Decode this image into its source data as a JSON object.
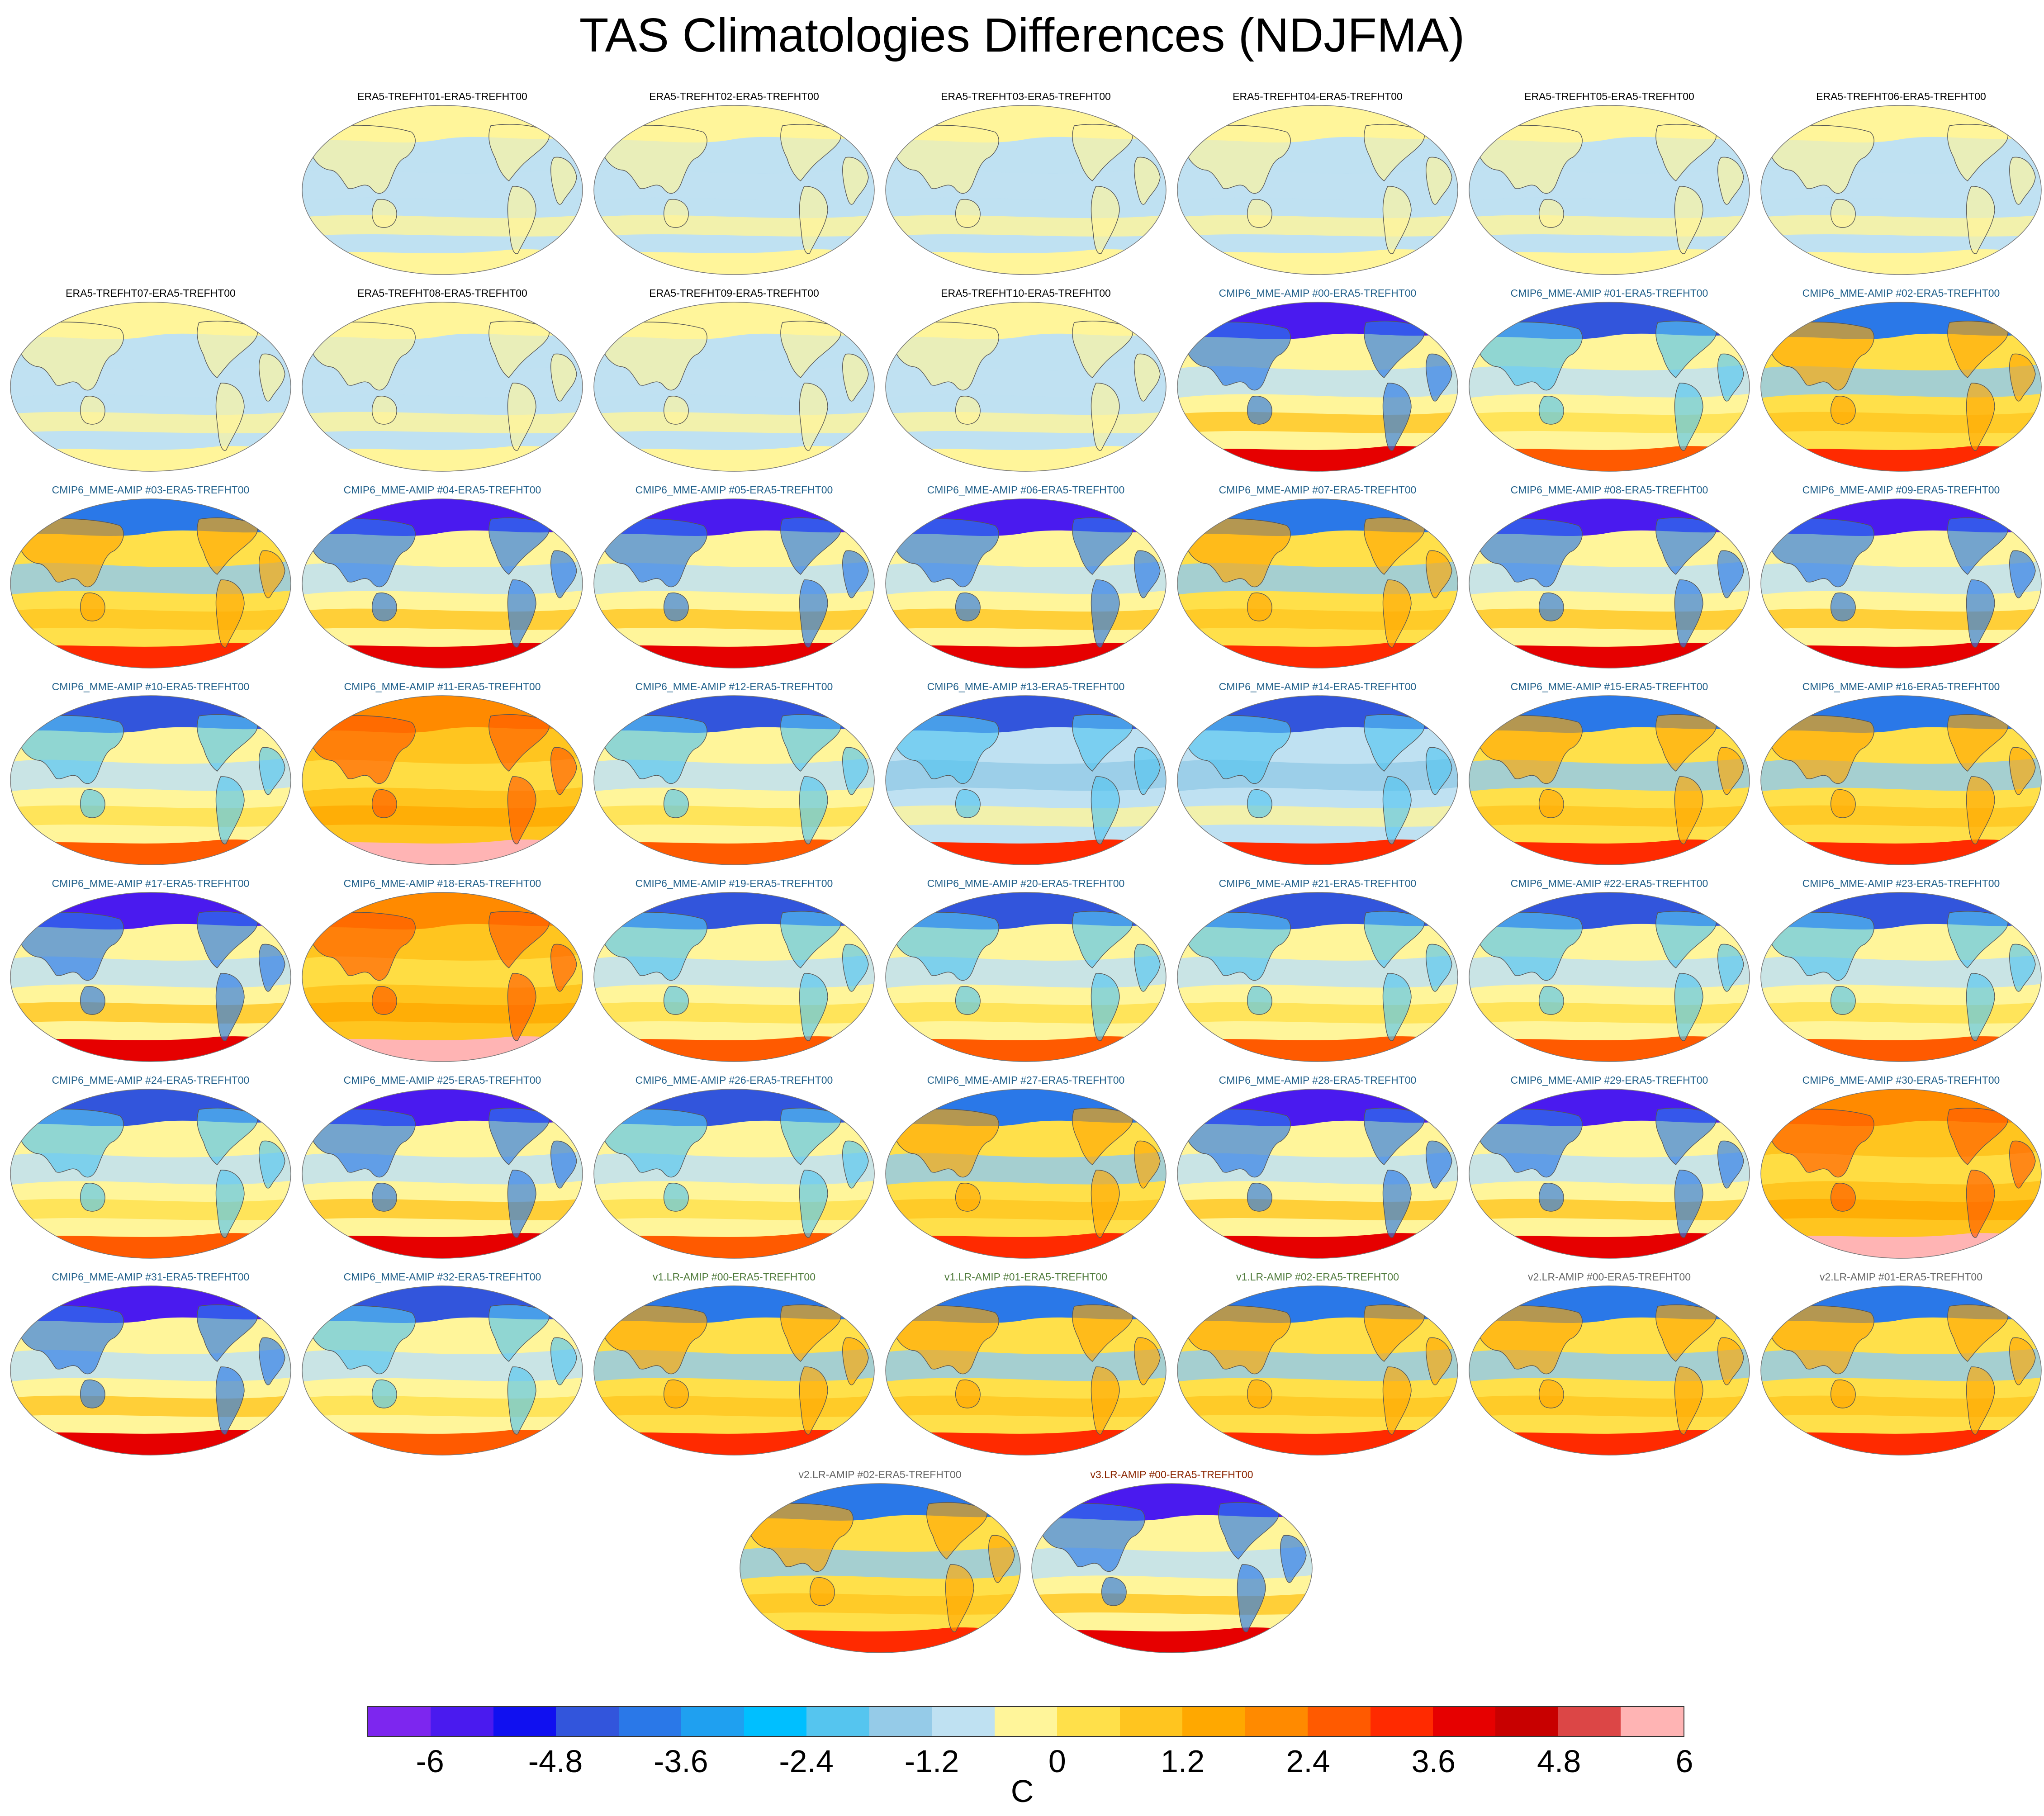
{
  "title": "TAS Climatologies Differences (NDJFMA)",
  "title_colors": {
    "era5": "#000000",
    "cmip6": "#1f5f8a",
    "v1": "#4e7a3a",
    "v2": "#666666",
    "v3": "#8b2500"
  },
  "panels": [
    {
      "label": "ERA5-TREFHT01-ERA5-TREFHT00",
      "group": "era5",
      "style": "era5"
    },
    {
      "label": "ERA5-TREFHT02-ERA5-TREFHT00",
      "group": "era5",
      "style": "era5"
    },
    {
      "label": "ERA5-TREFHT03-ERA5-TREFHT00",
      "group": "era5",
      "style": "era5"
    },
    {
      "label": "ERA5-TREFHT04-ERA5-TREFHT00",
      "group": "era5",
      "style": "era5"
    },
    {
      "label": "ERA5-TREFHT05-ERA5-TREFHT00",
      "group": "era5",
      "style": "era5"
    },
    {
      "label": "ERA5-TREFHT06-ERA5-TREFHT00",
      "group": "era5",
      "style": "era5"
    },
    {
      "label": "ERA5-TREFHT07-ERA5-TREFHT00",
      "group": "era5",
      "style": "era5"
    },
    {
      "label": "ERA5-TREFHT08-ERA5-TREFHT00",
      "group": "era5",
      "style": "era5"
    },
    {
      "label": "ERA5-TREFHT09-ERA5-TREFHT00",
      "group": "era5",
      "style": "era5"
    },
    {
      "label": "ERA5-TREFHT10-ERA5-TREFHT00",
      "group": "era5",
      "style": "era5"
    },
    {
      "label": "CMIP6_MME-AMIP  #00-ERA5-TREFHT00",
      "group": "cmip6",
      "style": "cold"
    },
    {
      "label": "CMIP6_MME-AMIP  #01-ERA5-TREFHT00",
      "group": "cmip6",
      "style": "mixed"
    },
    {
      "label": "CMIP6_MME-AMIP  #02-ERA5-TREFHT00",
      "group": "cmip6",
      "style": "warm"
    },
    {
      "label": "CMIP6_MME-AMIP  #03-ERA5-TREFHT00",
      "group": "cmip6",
      "style": "warm"
    },
    {
      "label": "CMIP6_MME-AMIP  #04-ERA5-TREFHT00",
      "group": "cmip6",
      "style": "cold"
    },
    {
      "label": "CMIP6_MME-AMIP  #05-ERA5-TREFHT00",
      "group": "cmip6",
      "style": "cold"
    },
    {
      "label": "CMIP6_MME-AMIP  #06-ERA5-TREFHT00",
      "group": "cmip6",
      "style": "cold"
    },
    {
      "label": "CMIP6_MME-AMIP  #07-ERA5-TREFHT00",
      "group": "cmip6",
      "style": "warm"
    },
    {
      "label": "CMIP6_MME-AMIP  #08-ERA5-TREFHT00",
      "group": "cmip6",
      "style": "cold"
    },
    {
      "label": "CMIP6_MME-AMIP  #09-ERA5-TREFHT00",
      "group": "cmip6",
      "style": "cold"
    },
    {
      "label": "CMIP6_MME-AMIP  #10-ERA5-TREFHT00",
      "group": "cmip6",
      "style": "mixed"
    },
    {
      "label": "CMIP6_MME-AMIP  #11-ERA5-TREFHT00",
      "group": "cmip6",
      "style": "hot"
    },
    {
      "label": "CMIP6_MME-AMIP  #12-ERA5-TREFHT00",
      "group": "cmip6",
      "style": "mixed"
    },
    {
      "label": "CMIP6_MME-AMIP  #13-ERA5-TREFHT00",
      "group": "cmip6",
      "style": "cool"
    },
    {
      "label": "CMIP6_MME-AMIP  #14-ERA5-TREFHT00",
      "group": "cmip6",
      "style": "cool"
    },
    {
      "label": "CMIP6_MME-AMIP  #15-ERA5-TREFHT00",
      "group": "cmip6",
      "style": "warm"
    },
    {
      "label": "CMIP6_MME-AMIP  #16-ERA5-TREFHT00",
      "group": "cmip6",
      "style": "warm"
    },
    {
      "label": "CMIP6_MME-AMIP  #17-ERA5-TREFHT00",
      "group": "cmip6",
      "style": "cold"
    },
    {
      "label": "CMIP6_MME-AMIP  #18-ERA5-TREFHT00",
      "group": "cmip6",
      "style": "hot"
    },
    {
      "label": "CMIP6_MME-AMIP  #19-ERA5-TREFHT00",
      "group": "cmip6",
      "style": "mixed"
    },
    {
      "label": "CMIP6_MME-AMIP  #20-ERA5-TREFHT00",
      "group": "cmip6",
      "style": "mixed"
    },
    {
      "label": "CMIP6_MME-AMIP  #21-ERA5-TREFHT00",
      "group": "cmip6",
      "style": "mixed"
    },
    {
      "label": "CMIP6_MME-AMIP  #22-ERA5-TREFHT00",
      "group": "cmip6",
      "style": "mixed"
    },
    {
      "label": "CMIP6_MME-AMIP  #23-ERA5-TREFHT00",
      "group": "cmip6",
      "style": "mixed"
    },
    {
      "label": "CMIP6_MME-AMIP  #24-ERA5-TREFHT00",
      "group": "cmip6",
      "style": "mixed"
    },
    {
      "label": "CMIP6_MME-AMIP  #25-ERA5-TREFHT00",
      "group": "cmip6",
      "style": "cold"
    },
    {
      "label": "CMIP6_MME-AMIP  #26-ERA5-TREFHT00",
      "group": "cmip6",
      "style": "mixed"
    },
    {
      "label": "CMIP6_MME-AMIP  #27-ERA5-TREFHT00",
      "group": "cmip6",
      "style": "warm"
    },
    {
      "label": "CMIP6_MME-AMIP  #28-ERA5-TREFHT00",
      "group": "cmip6",
      "style": "cold"
    },
    {
      "label": "CMIP6_MME-AMIP  #29-ERA5-TREFHT00",
      "group": "cmip6",
      "style": "cold"
    },
    {
      "label": "CMIP6_MME-AMIP  #30-ERA5-TREFHT00",
      "group": "cmip6",
      "style": "hot"
    },
    {
      "label": "CMIP6_MME-AMIP  #31-ERA5-TREFHT00",
      "group": "cmip6",
      "style": "cold"
    },
    {
      "label": "CMIP6_MME-AMIP  #32-ERA5-TREFHT00",
      "group": "cmip6",
      "style": "mixed"
    },
    {
      "label": "v1.LR-AMIP  #00-ERA5-TREFHT00",
      "group": "v1",
      "style": "warm"
    },
    {
      "label": "v1.LR-AMIP  #01-ERA5-TREFHT00",
      "group": "v1",
      "style": "warm"
    },
    {
      "label": "v1.LR-AMIP  #02-ERA5-TREFHT00",
      "group": "v1",
      "style": "warm"
    },
    {
      "label": "v2.LR-AMIP  #00-ERA5-TREFHT00",
      "group": "v2",
      "style": "warm"
    },
    {
      "label": "v2.LR-AMIP  #01-ERA5-TREFHT00",
      "group": "v2",
      "style": "warm"
    },
    {
      "label": "v2.LR-AMIP  #02-ERA5-TREFHT00",
      "group": "v2",
      "style": "warm"
    },
    {
      "label": "v3.LR-AMIP  #00-ERA5-TREFHT00",
      "group": "v3",
      "style": "cold"
    }
  ],
  "colorbar": {
    "colors": [
      "#7d26ef",
      "#4a1aef",
      "#1010f0",
      "#3255dc",
      "#2a78e8",
      "#1fa0f0",
      "#00bfff",
      "#55c5ef",
      "#95cbe8",
      "#bfe1f2",
      "#fff59a",
      "#ffe04a",
      "#ffc51f",
      "#ffa800",
      "#ff8a00",
      "#ff5a00",
      "#ff2a00",
      "#e60000",
      "#c80000",
      "#dc4646",
      "#ffb4b4"
    ],
    "tick_labels": [
      "-6",
      "-4.8",
      "-3.6",
      "-2.4",
      "-1.2",
      "0",
      "1.2",
      "2.4",
      "3.6",
      "4.8",
      "6"
    ],
    "units": "C"
  }
}
